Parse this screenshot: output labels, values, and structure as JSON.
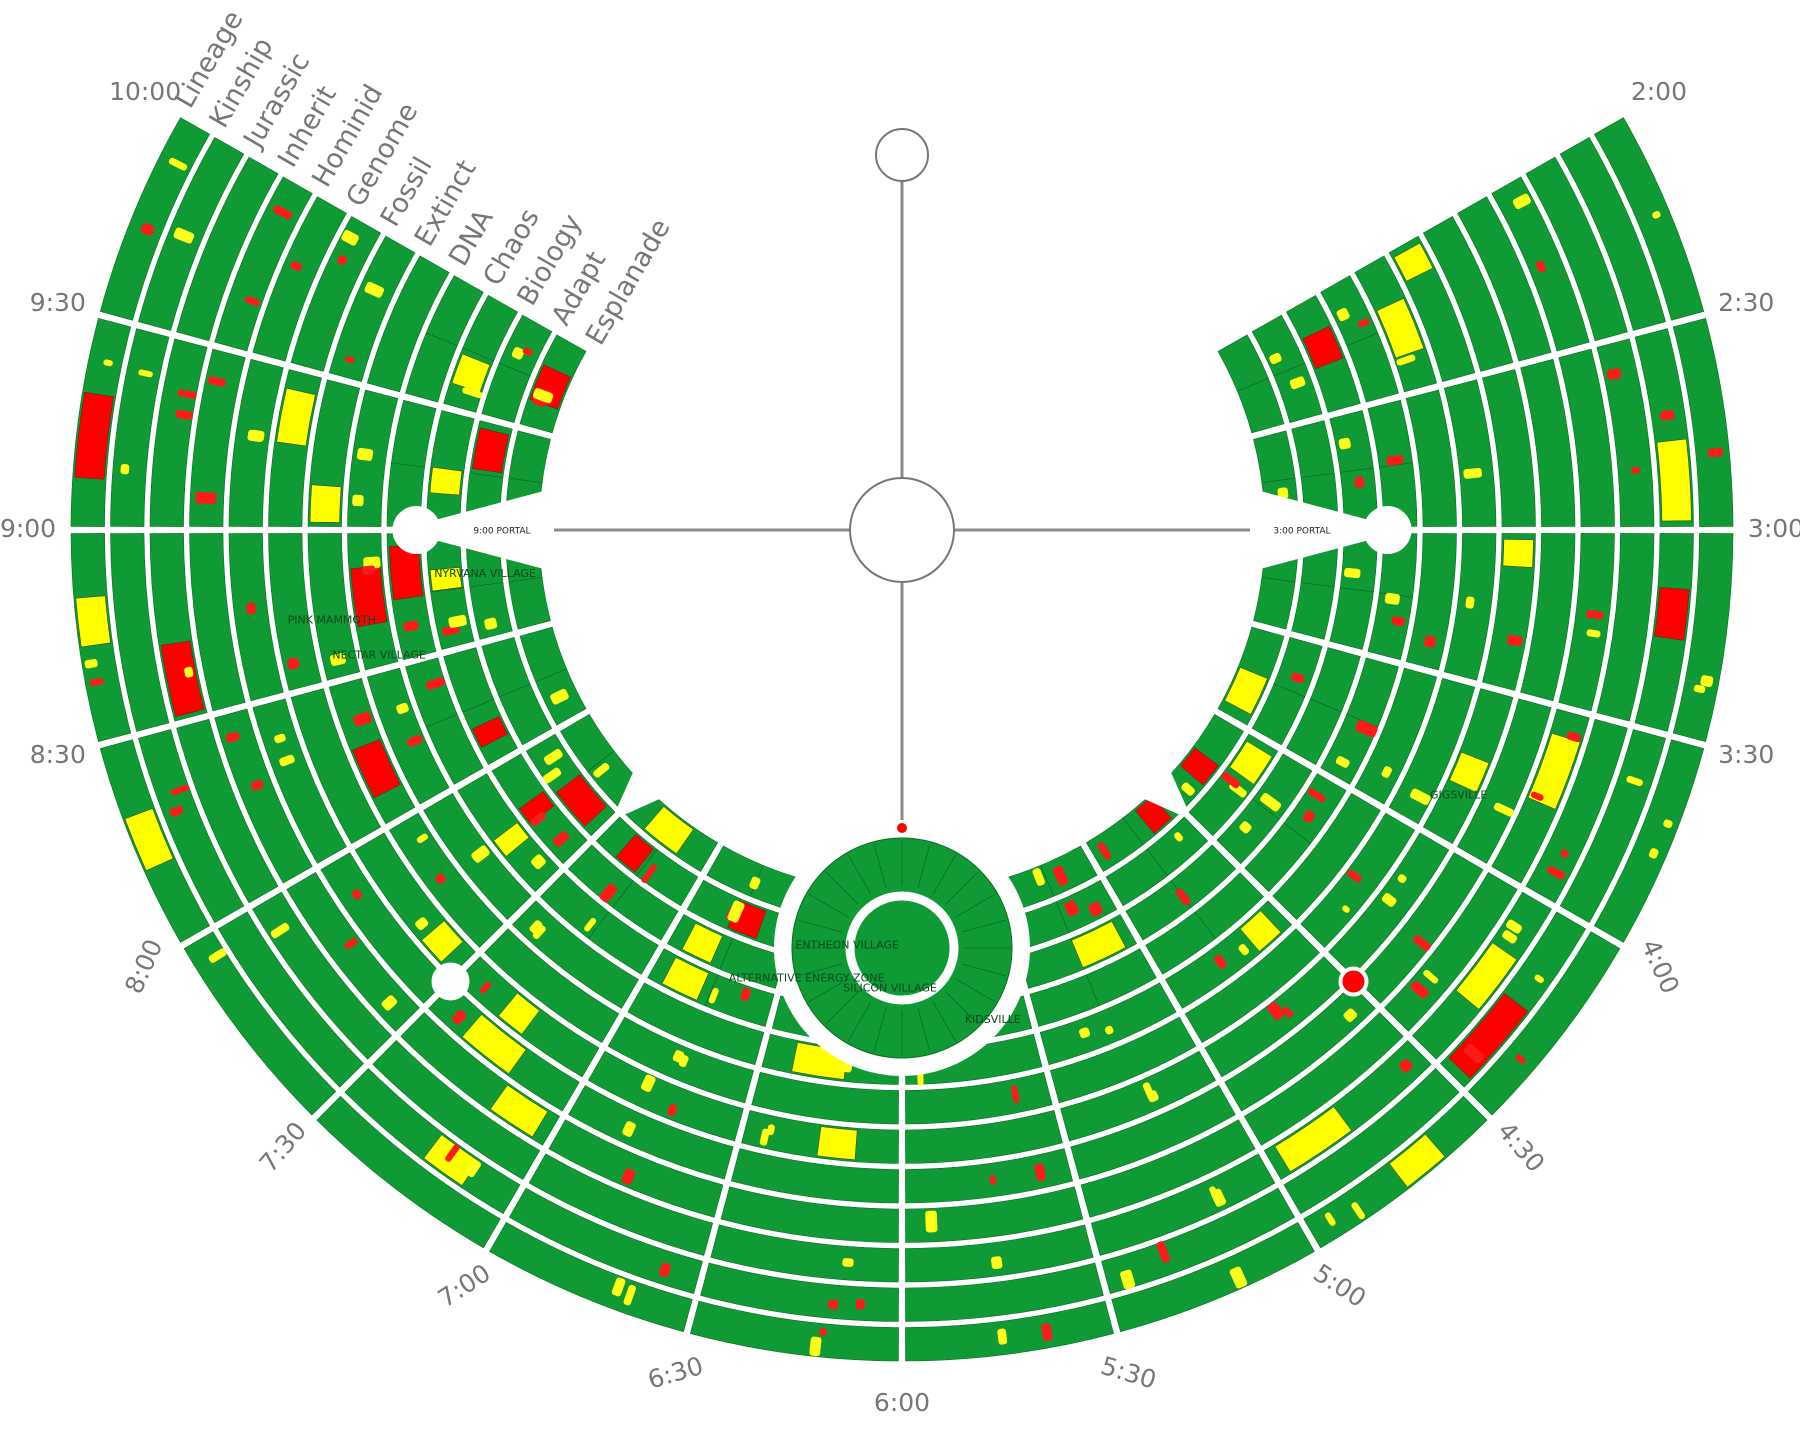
{
  "map": {
    "street_names": [
      "Esplanade",
      "Adapt",
      "Biology",
      "Chaos",
      "DNA",
      "Extinct",
      "Fossil",
      "Genome",
      "Hominid",
      "Inherit",
      "Jurassic",
      "Kinship",
      "Lineage"
    ],
    "clock_times": [
      "2:00",
      "2:30",
      "3:00",
      "3:30",
      "4:00",
      "4:30",
      "5:00",
      "5:30",
      "6:00",
      "6:30",
      "7:00",
      "7:30",
      "8:00",
      "8:30",
      "9:00",
      "9:30",
      "10:00"
    ],
    "portal_labels": [
      "9:00 PORTAL",
      "3:00 PORTAL"
    ],
    "camp_labels": [
      "NECTAR VILLAGE",
      "ALTERNATIVE ENERGY ZONE",
      "SILICON VILLAGE",
      "ENTHEON VILLAGE",
      "KIDSVILLE",
      "GIGSVILLE",
      "NYRVANA VILLAGE",
      "PINK MAMMOTH"
    ]
  }
}
